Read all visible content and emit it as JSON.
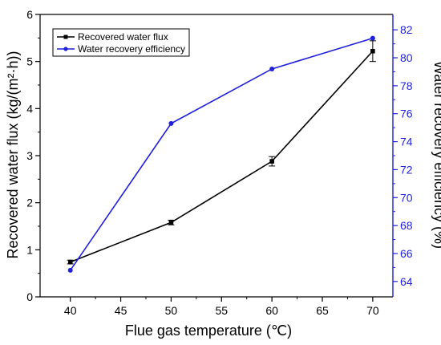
{
  "chart_data": {
    "type": "line",
    "xlabel": "Flue gas temperature (℃)",
    "ylabel_left": "Recovered water flux (kg/(m²·h))",
    "ylabel_right": "Water recovery efficiency (%)",
    "xlim": [
      37,
      72
    ],
    "ylim_left": [
      0,
      6
    ],
    "ylim_right": [
      62.9,
      83.1
    ],
    "x_ticks": [
      40,
      45,
      50,
      55,
      60,
      65,
      70
    ],
    "y_left_ticks": [
      0,
      1,
      2,
      3,
      4,
      5,
      6
    ],
    "y_right_ticks": [
      64,
      66,
      68,
      70,
      72,
      74,
      76,
      78,
      80,
      82
    ],
    "grid": false,
    "legend_position": "top-left",
    "series": [
      {
        "name": "Recovered water flux",
        "axis": "left",
        "color": "#000000",
        "marker": "square",
        "x": [
          40,
          50,
          60,
          70
        ],
        "y": [
          0.74,
          1.58,
          2.88,
          5.22
        ],
        "error": [
          0.04,
          0.05,
          0.1,
          0.22
        ]
      },
      {
        "name": "Water recovery efficiency",
        "axis": "right",
        "color": "#1f1fdc",
        "marker": "circle",
        "x": [
          40,
          50,
          60,
          70
        ],
        "y": [
          64.8,
          75.3,
          79.2,
          81.4
        ]
      }
    ]
  }
}
